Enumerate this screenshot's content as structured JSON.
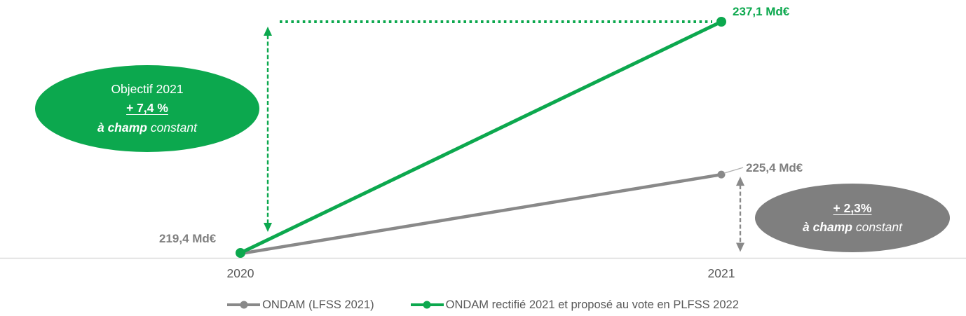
{
  "chart_data": {
    "type": "line",
    "title": "",
    "categories": [
      "2020",
      "2021"
    ],
    "series": [
      {
        "name": "ONDAM (LFSS 2021)",
        "values": [
          219.4,
          225.4
        ],
        "color": "#898989",
        "marker": "circle"
      },
      {
        "name": "ONDAM rectifié 2021 et proposé au vote en PLFSS 2022",
        "values": [
          219.4,
          237.1
        ],
        "color": "#0CA84E",
        "marker": "circle"
      }
    ],
    "value_unit": "Md€",
    "ylim": [
      219.0,
      238.0
    ],
    "grid": false,
    "legend_position": "bottom",
    "annotations": {
      "start_label": "219,4 Md€",
      "gray_end_label": "225,4 Md€",
      "green_end_label": "237,1 Md€",
      "green_dotted_reference_line_at": 237.1,
      "green_double_arrow_meaning": "Objectif 2021 + 7,4 % à champ constant",
      "gray_double_arrow_meaning": "+ 2,3% à champ constant"
    }
  },
  "x_axis": {
    "tick_2020": "2020",
    "tick_2021": "2021"
  },
  "bubbles": {
    "green": {
      "line1": "Objectif 2021",
      "line2": "+ 7,4 %",
      "line3_lead": "à champ",
      "line3_tail": " constant"
    },
    "gray": {
      "line1": "+ 2,3%",
      "line2_lead": "à champ",
      "line2_tail": " constant"
    }
  },
  "legend": {
    "items": [
      {
        "label": "ONDAM (LFSS 2021)",
        "color": "#898989"
      },
      {
        "label": "ONDAM rectifié 2021 et proposé au vote en PLFSS 2022",
        "color": "#0CA84E"
      }
    ]
  },
  "colors": {
    "green": "#0CA84E",
    "gray_line": "#898989",
    "gray_fill": "#7F7F7F",
    "value_label_gray": "#7F7F7F",
    "tick_text": "#595959",
    "legend_text": "#595959",
    "axis_line": "#D9D9D9",
    "leader_line": "#AFAFAF"
  }
}
